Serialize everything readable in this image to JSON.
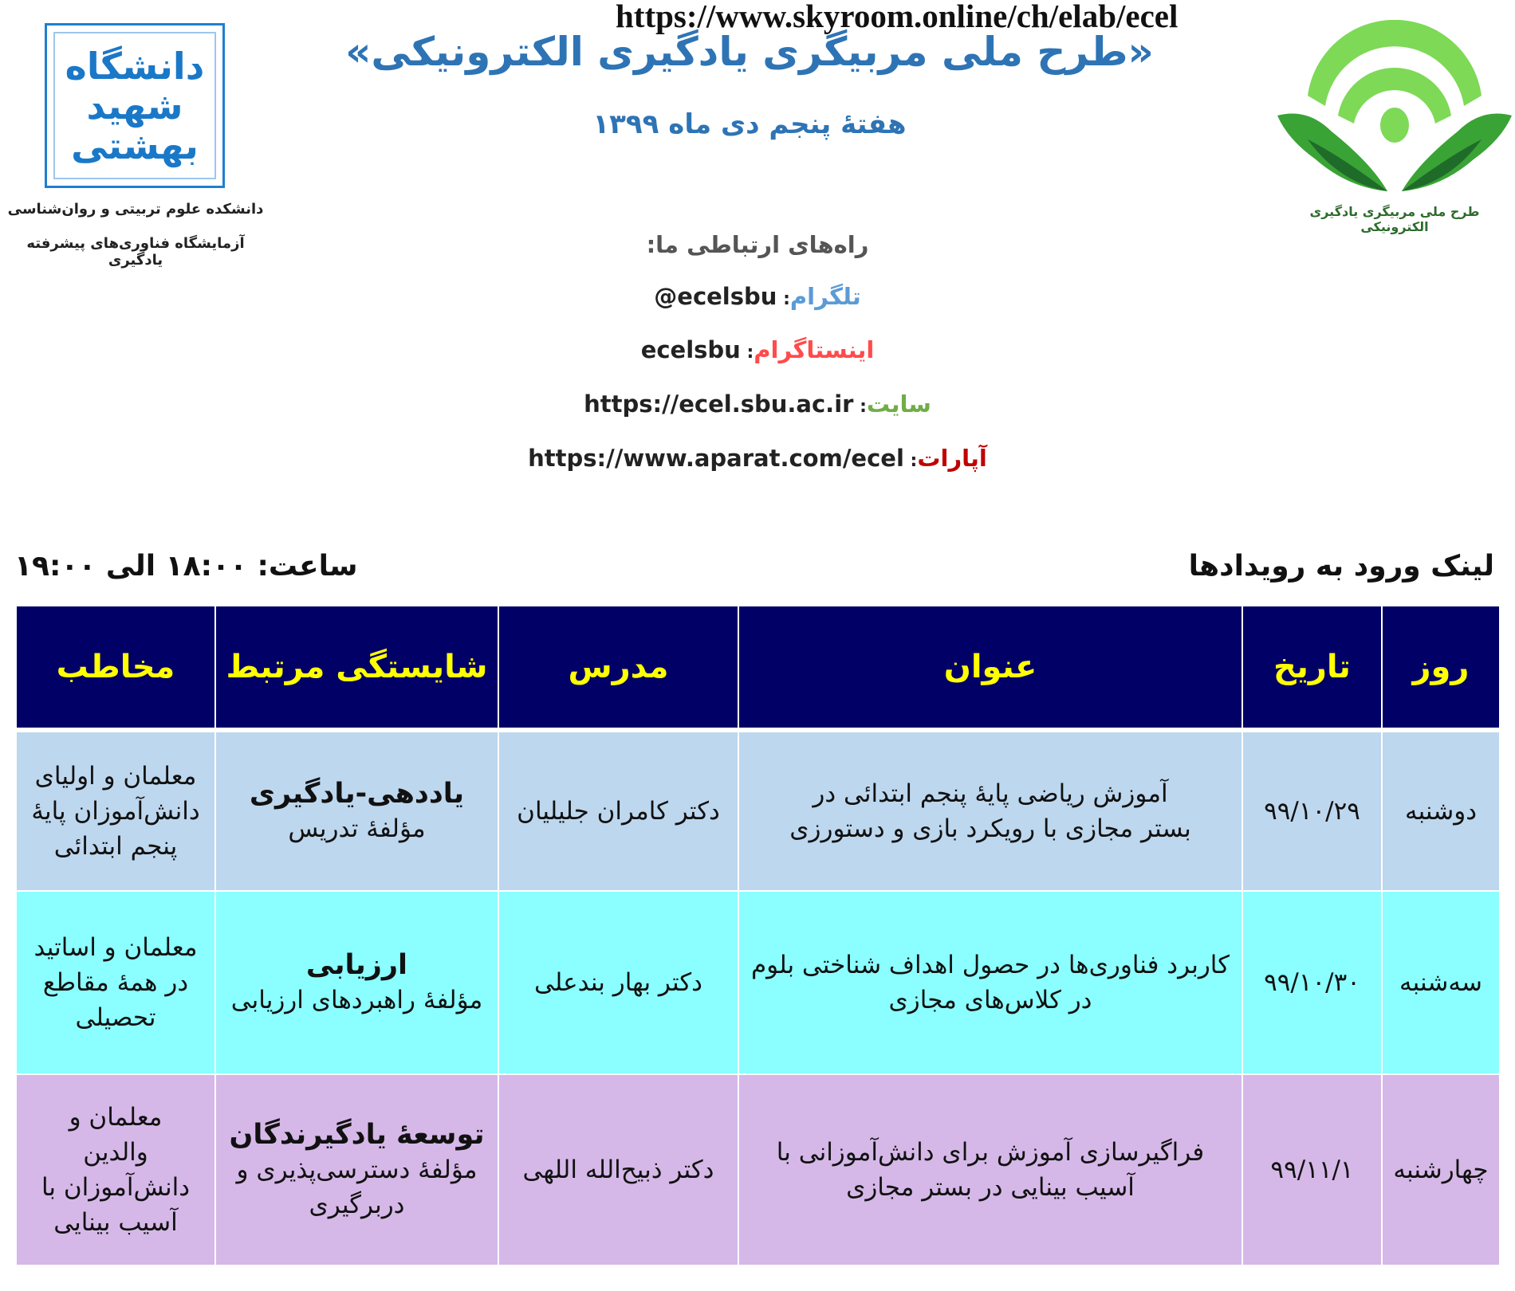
{
  "header": {
    "title": "«طرح ملی مربیگری یادگیری الکترونیکی»",
    "subtitle": "هفتهٔ پنجم دی ماه ۱۳۹۹"
  },
  "left_logo": {
    "logo_text": "دانشگاه شهید بهشتی",
    "caption_1": "دانشکده علوم تربیتی و روان‌شناسی",
    "caption_2": "آزمایشگاه فناوری‌های پیشرفته یادگیری"
  },
  "right_logo": {
    "caption": "طرح ملی مربیگری یادگیری الکترونیکی"
  },
  "contacts": {
    "heading": "راه‌های ارتباطی ما:",
    "items": [
      {
        "label": "تلگرام",
        "value": "@ecelsbu",
        "color": "#5b9bd5"
      },
      {
        "label": "اینستاگرام",
        "value": "ecelsbu",
        "color": "#ff4b4b"
      },
      {
        "label": "سایت",
        "value": "https://ecel.sbu.ac.ir",
        "color": "#70ad47"
      },
      {
        "label": "آپارات",
        "value": "https://www.aparat.com/ecel",
        "color": "#c00000"
      }
    ]
  },
  "events": {
    "label": "لینک ورود به رویدادها",
    "url": "https://www.skyroom.online/ch/elab/ecel",
    "time": "ساعت: ۱۸:۰۰ الی ۱۹:۰۰"
  },
  "table": {
    "headers": [
      "روز",
      "تاریخ",
      "عنوان",
      "مدرس",
      "شایستگی مرتبط",
      "مخاطب"
    ],
    "rows": [
      {
        "day": "دوشنبه",
        "date": "۹۹/۱۰/۲۹",
        "title": "آموزش ریاضی پایهٔ پنجم ابتدائی در بستر مجازی با رویکرد بازی و دستورزی",
        "teacher": "دکتر کامران جلیلیان",
        "competency": "یاددهی-یادگیری",
        "component": "مؤلفهٔ تدریس",
        "audience": "معلمان و اولیای دانش‌آموزان پایهٔ پنجم ابتدائی"
      },
      {
        "day": "سه‌شنبه",
        "date": "۹۹/۱۰/۳۰",
        "title": "کاربرد فناوری‌ها در حصول اهداف شناختی بلوم در کلاس‌های مجازی",
        "teacher": "دکتر بهار بندعلی",
        "competency": "ارزیابی",
        "component": "مؤلفهٔ راهبردهای ارزیابی",
        "audience": "معلمان و اساتید در همهٔ مقاطع تحصیلی"
      },
      {
        "day": "چهارشنبه",
        "date": "۹۹/۱۱/۱",
        "title": "فراگیرسازی آموزش برای دانش‌آموزانی با آسیب بینایی در بستر مجازی",
        "teacher": "دکتر ذبیح‌الله اللهی",
        "competency": "توسعهٔ یادگیرندگان",
        "component": "مؤلفهٔ دسترسی‌پذیری و دربرگیری",
        "audience": "معلمان و والدین دانش‌آموزان با آسیب بینایی"
      }
    ],
    "colors": {
      "header_bg": "#000066",
      "header_text": "#ffff00",
      "row_bgs": [
        "#bdd7ee",
        "#8bffff",
        "#d5b8e8"
      ]
    }
  }
}
